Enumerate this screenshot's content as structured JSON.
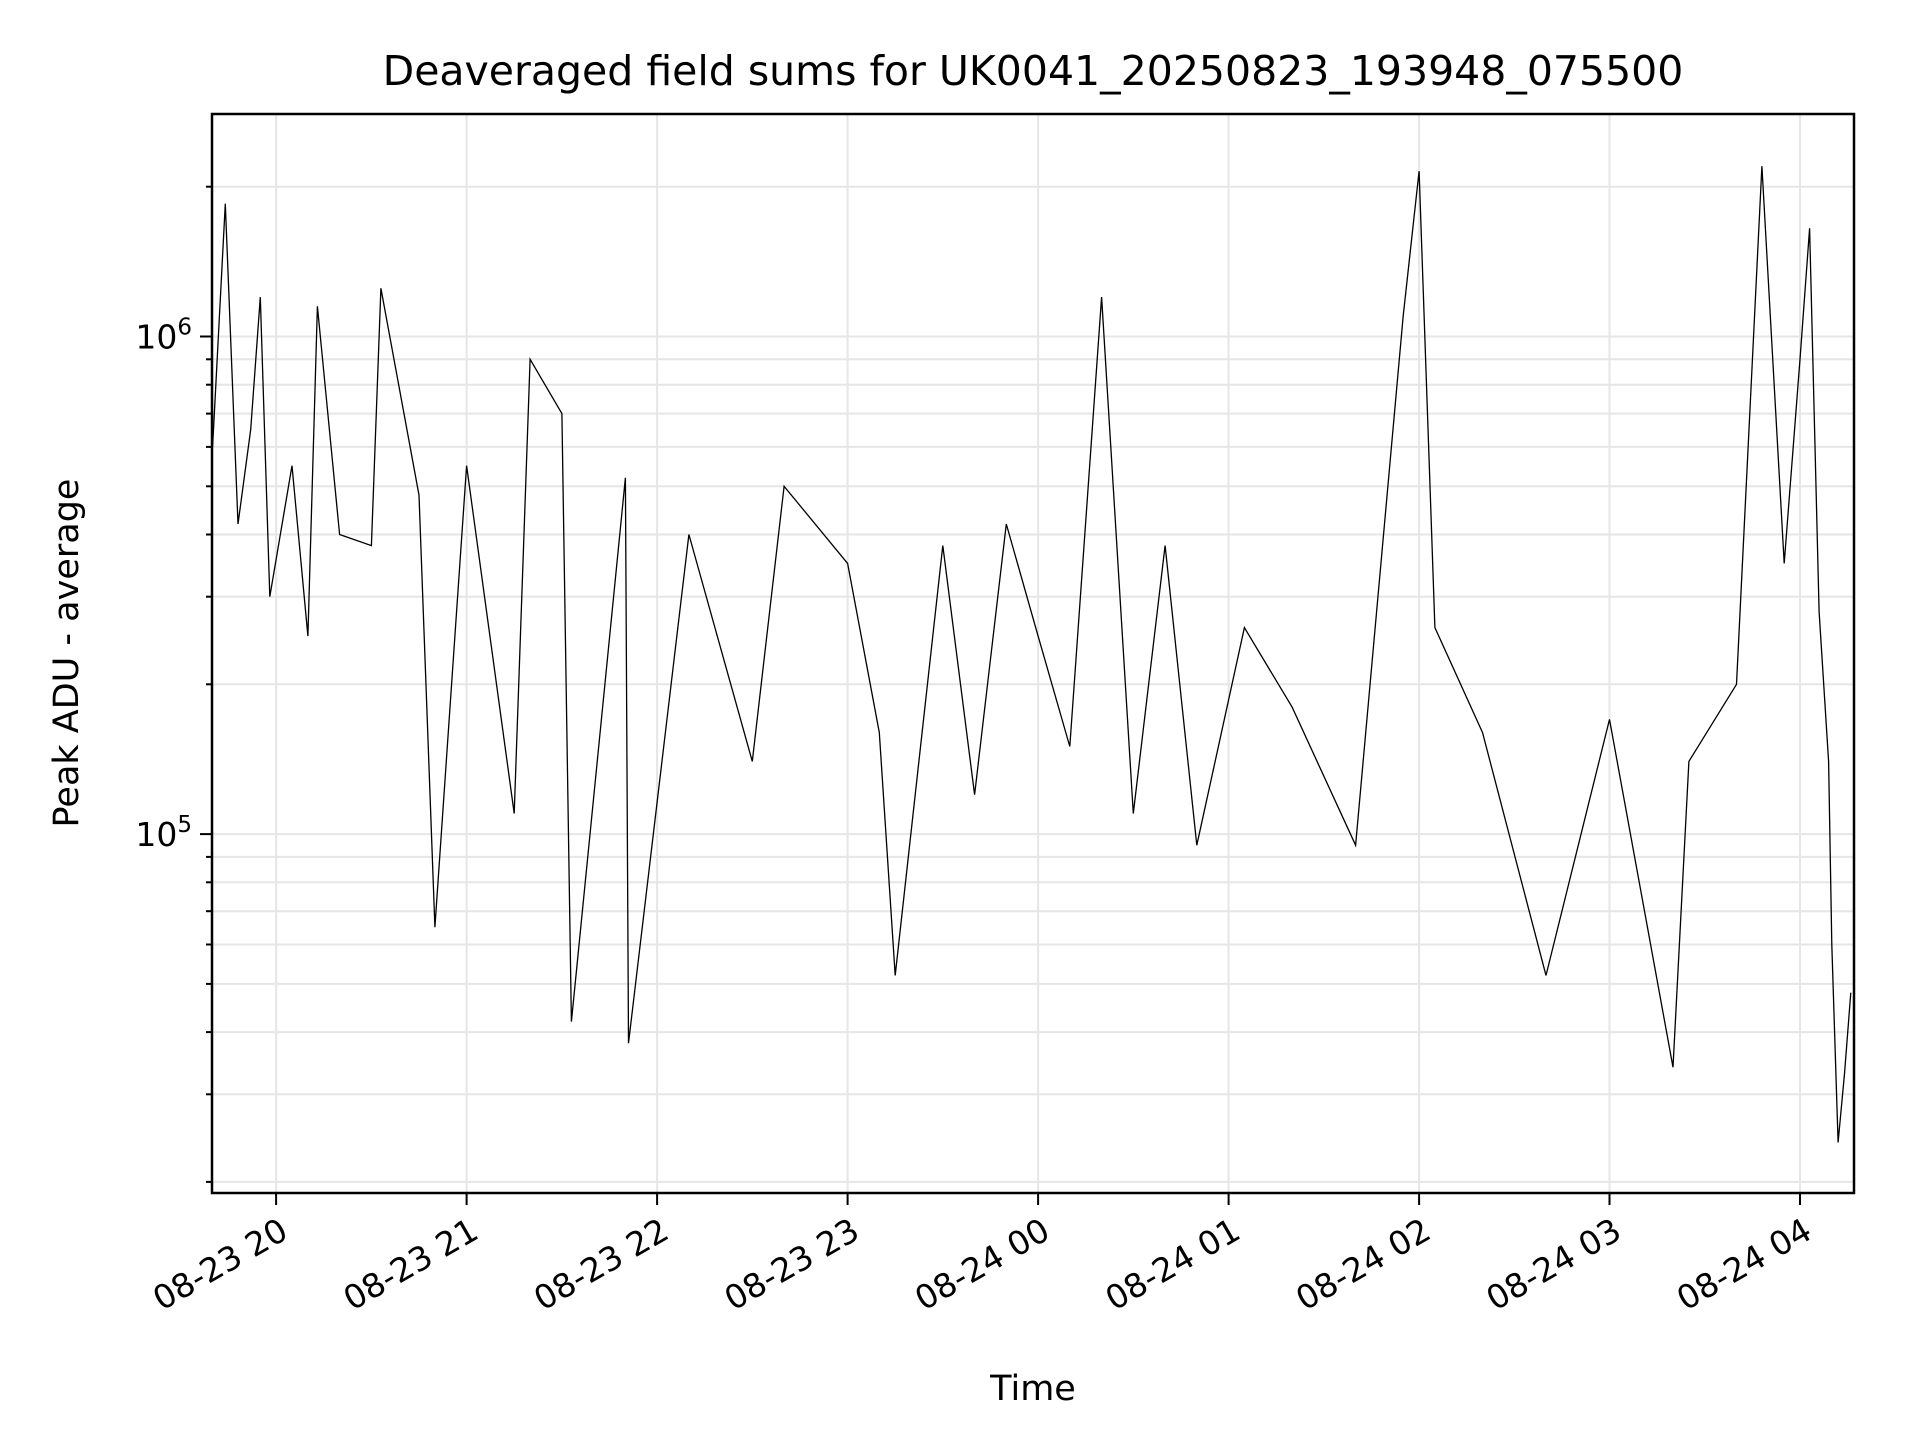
{
  "chart_data": {
    "type": "line",
    "title": "Deaveraged field sums for UK0041_20250823_193948_075500",
    "xlabel": "Time",
    "ylabel": "Peak ADU - average",
    "yscale": "log",
    "grid": true,
    "line_color": "#000000",
    "xlim": [
      "2025-08-23 19:39:48",
      "2025-08-24 04:17:00"
    ],
    "ylim": [
      19000,
      2800000
    ],
    "x_ticks": [
      {
        "time": "2025-08-23 20:00",
        "label": "08-23 20"
      },
      {
        "time": "2025-08-23 21:00",
        "label": "08-23 21"
      },
      {
        "time": "2025-08-23 22:00",
        "label": "08-23 22"
      },
      {
        "time": "2025-08-23 23:00",
        "label": "08-23 23"
      },
      {
        "time": "2025-08-24 00:00",
        "label": "08-24 00"
      },
      {
        "time": "2025-08-24 01:00",
        "label": "08-24 01"
      },
      {
        "time": "2025-08-24 02:00",
        "label": "08-24 02"
      },
      {
        "time": "2025-08-24 03:00",
        "label": "08-24 03"
      },
      {
        "time": "2025-08-24 04:00",
        "label": "08-24 04"
      }
    ],
    "y_ticks": [
      {
        "value": 100000,
        "base": "10",
        "exp": "5"
      },
      {
        "value": 1000000,
        "base": "10",
        "exp": "6"
      }
    ],
    "series": [
      {
        "x": [
          "2025-08-23 19:40",
          "2025-08-23 19:44",
          "2025-08-23 19:48",
          "2025-08-23 19:52",
          "2025-08-23 19:55",
          "2025-08-23 19:58",
          "2025-08-23 20:05",
          "2025-08-23 20:10",
          "2025-08-23 20:13",
          "2025-08-23 20:20",
          "2025-08-23 20:30",
          "2025-08-23 20:33",
          "2025-08-23 20:45",
          "2025-08-23 20:50",
          "2025-08-23 21:00",
          "2025-08-23 21:15",
          "2025-08-23 21:20",
          "2025-08-23 21:30",
          "2025-08-23 21:33",
          "2025-08-23 21:50",
          "2025-08-23 21:51",
          "2025-08-23 22:10",
          "2025-08-23 22:30",
          "2025-08-23 22:40",
          "2025-08-23 23:00",
          "2025-08-23 23:10",
          "2025-08-23 23:15",
          "2025-08-23 23:30",
          "2025-08-23 23:40",
          "2025-08-23 23:50",
          "2025-08-24 00:00",
          "2025-08-24 00:10",
          "2025-08-24 00:20",
          "2025-08-24 00:30",
          "2025-08-24 00:40",
          "2025-08-24 00:50",
          "2025-08-24 01:05",
          "2025-08-24 01:20",
          "2025-08-24 01:40",
          "2025-08-24 01:55",
          "2025-08-24 02:00",
          "2025-08-24 02:05",
          "2025-08-24 02:20",
          "2025-08-24 02:40",
          "2025-08-24 03:00",
          "2025-08-24 03:20",
          "2025-08-24 03:25",
          "2025-08-24 03:40",
          "2025-08-24 03:48",
          "2025-08-24 03:55",
          "2025-08-24 04:00",
          "2025-08-24 04:03",
          "2025-08-24 04:06",
          "2025-08-24 04:09",
          "2025-08-24 04:10",
          "2025-08-24 04:12",
          "2025-08-24 04:14",
          "2025-08-24 04:16"
        ],
        "y": [
          600000,
          1850000,
          420000,
          650000,
          1200000,
          300000,
          550000,
          250000,
          1150000,
          400000,
          380000,
          1250000,
          480000,
          65000,
          550000,
          110000,
          900000,
          700000,
          42000,
          520000,
          38000,
          400000,
          140000,
          500000,
          350000,
          160000,
          52000,
          380000,
          120000,
          420000,
          250000,
          150000,
          1200000,
          110000,
          380000,
          95000,
          260000,
          180000,
          95000,
          1100000,
          2150000,
          260000,
          160000,
          52000,
          170000,
          34000,
          140000,
          200000,
          2200000,
          350000,
          900000,
          1650000,
          280000,
          140000,
          60000,
          24000,
          33000,
          48000
        ]
      }
    ]
  }
}
